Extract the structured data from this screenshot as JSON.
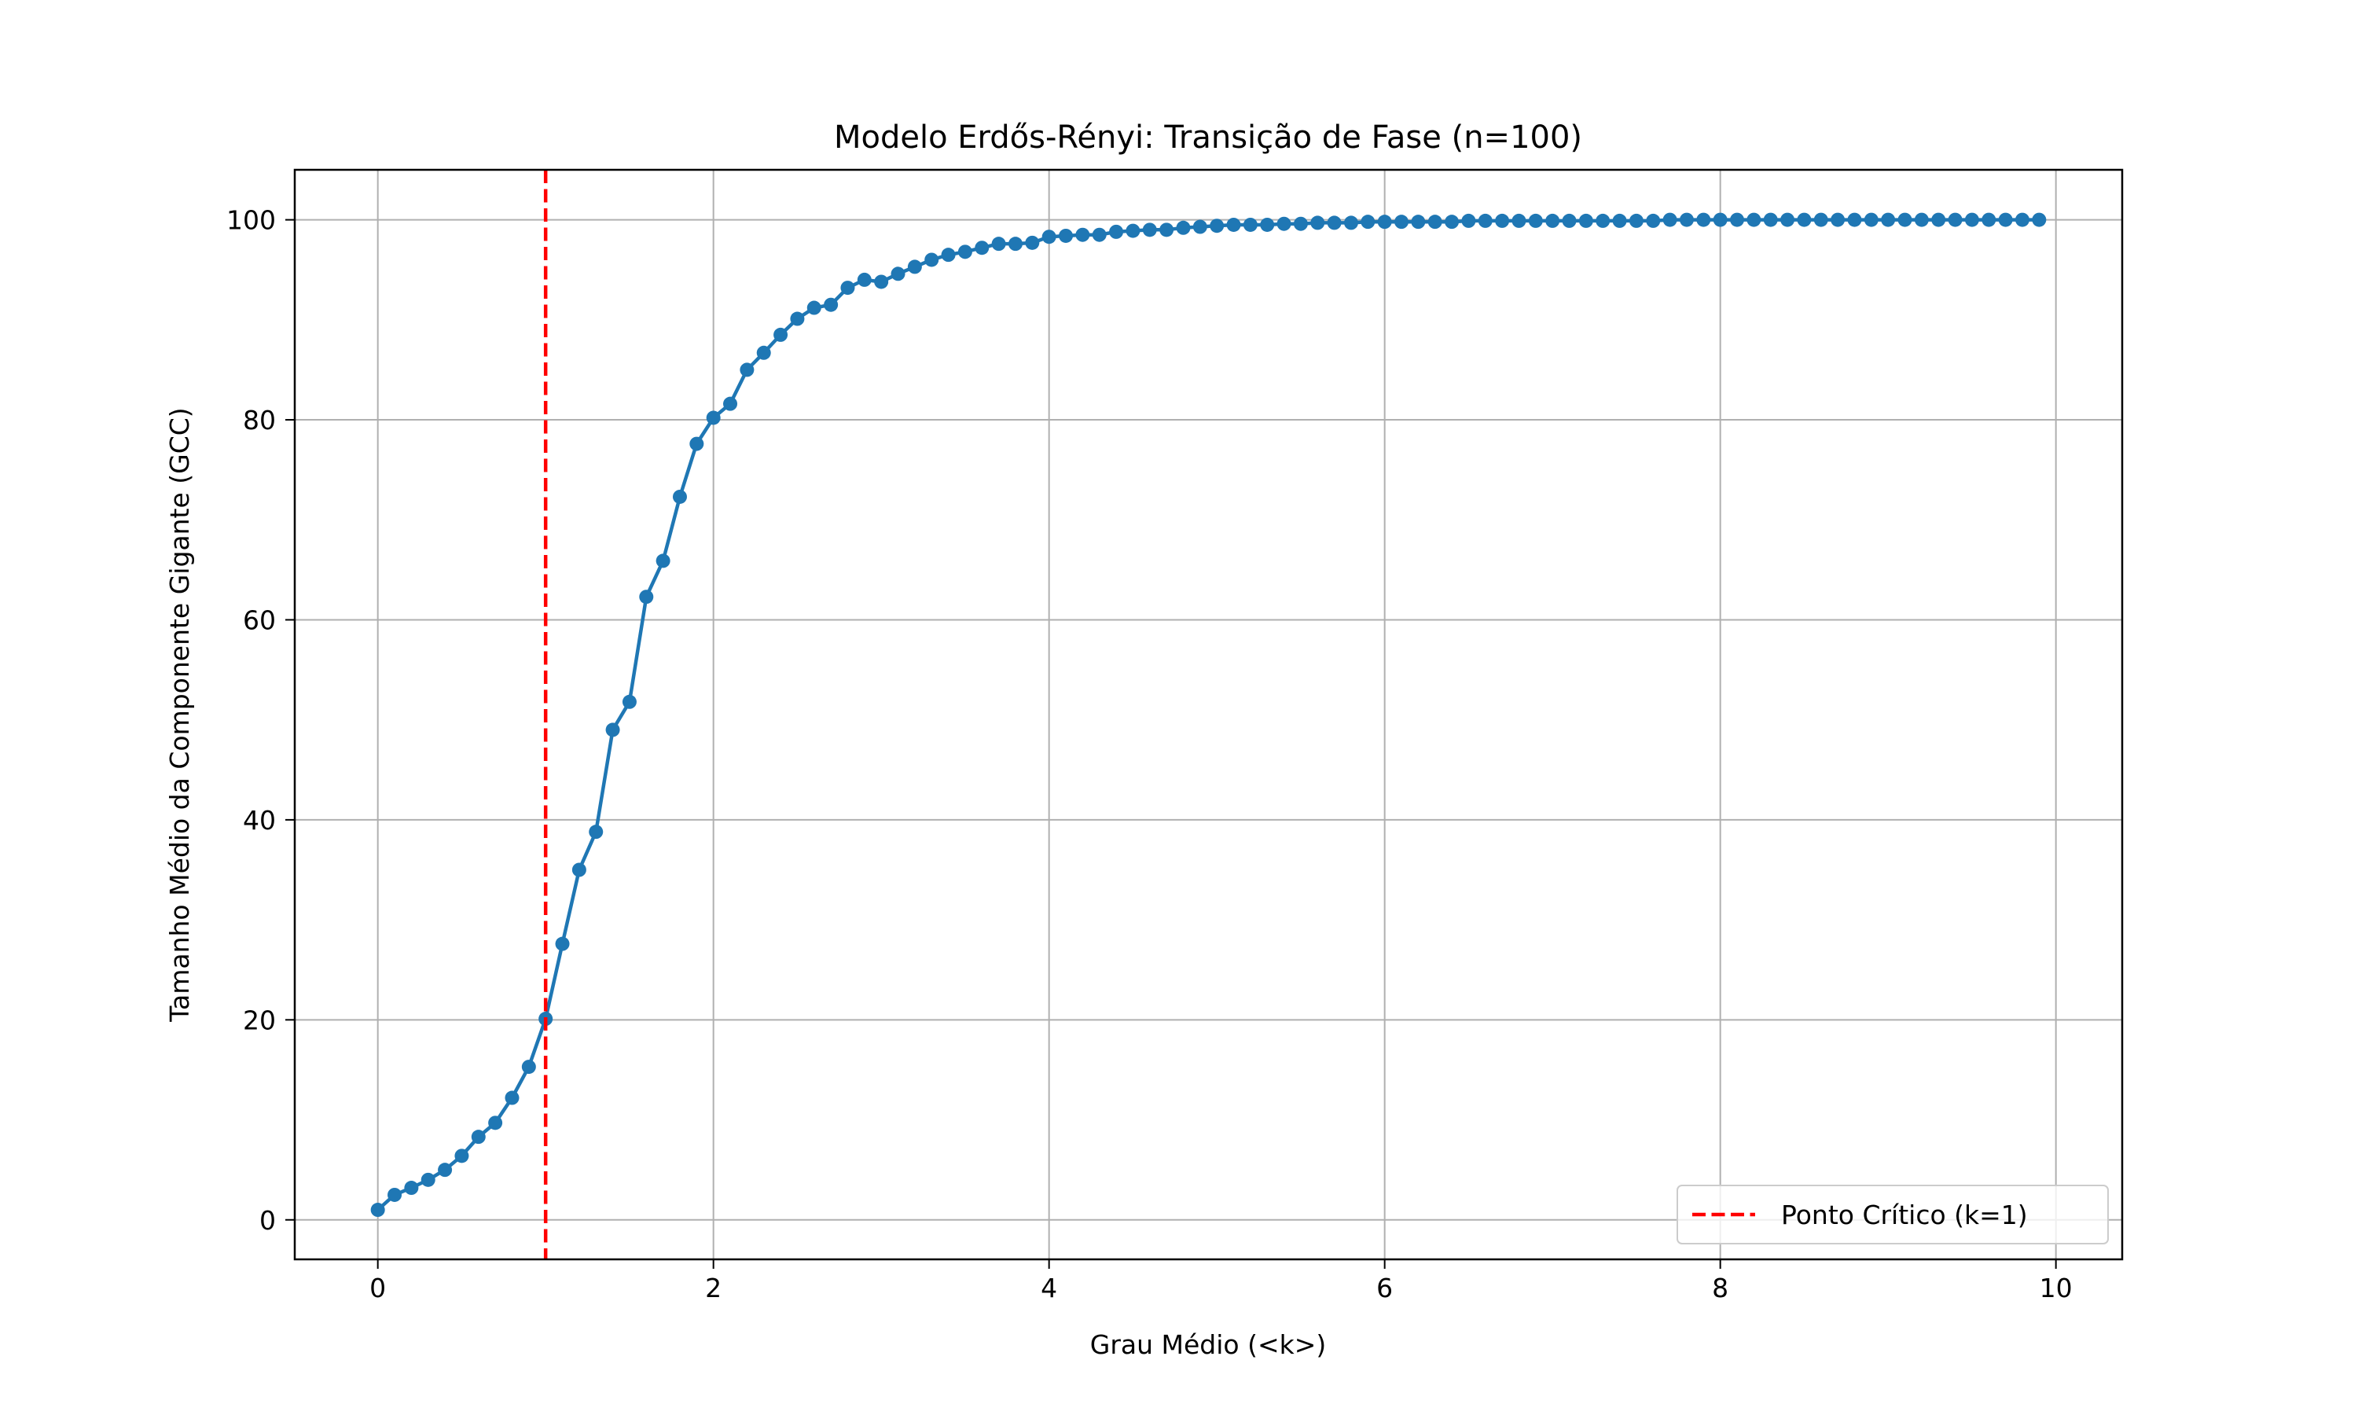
{
  "chart_data": {
    "type": "line",
    "title": "Modelo Erdős-Rényi: Transição de Fase (n=100)",
    "xlabel": "Grau Médio (<k>)",
    "ylabel": "Tamanho Médio da Componente Gigante (GCC)",
    "xlim": [
      -0.495,
      10.395
    ],
    "ylim": [
      -3.95,
      105.0
    ],
    "xticks": [
      0,
      2,
      4,
      6,
      8,
      10
    ],
    "yticks": [
      0,
      20,
      40,
      60,
      80,
      100
    ],
    "grid": true,
    "legend_position": "lower right",
    "colors": {
      "series": "#1f77b4",
      "critical": "#ff0000",
      "grid": "#b0b0b0"
    },
    "series": [
      {
        "x": [
          0.0,
          0.1,
          0.2,
          0.3,
          0.4,
          0.5,
          0.6,
          0.7,
          0.8,
          0.9,
          1.0,
          1.1,
          1.2,
          1.3,
          1.4,
          1.5,
          1.6,
          1.7,
          1.8,
          1.9,
          2.0,
          2.1,
          2.2,
          2.3,
          2.4,
          2.5,
          2.6,
          2.7,
          2.8,
          2.9,
          3.0,
          3.1,
          3.2,
          3.3,
          3.4,
          3.5,
          3.6,
          3.7,
          3.8,
          3.9,
          4.0,
          4.1,
          4.2,
          4.3,
          4.4,
          4.5,
          4.6,
          4.7,
          4.8,
          4.9,
          5.0,
          5.1,
          5.2,
          5.3,
          5.4,
          5.5,
          5.6,
          5.7,
          5.8,
          5.9,
          6.0,
          6.1,
          6.2,
          6.3,
          6.4,
          6.5,
          6.6,
          6.7,
          6.8,
          6.9,
          7.0,
          7.1,
          7.2,
          7.3,
          7.4,
          7.5,
          7.6,
          7.7,
          7.8,
          7.9,
          8.0,
          8.1,
          8.2,
          8.3,
          8.4,
          8.5,
          8.6,
          8.7,
          8.8,
          8.9,
          9.0,
          9.1,
          9.2,
          9.3,
          9.4,
          9.5,
          9.6,
          9.7,
          9.8,
          9.9
        ],
        "values": [
          1.0,
          2.5,
          3.2,
          4.0,
          5.0,
          6.4,
          8.3,
          9.7,
          12.2,
          15.3,
          20.1,
          27.6,
          35.0,
          38.8,
          49.0,
          51.8,
          62.3,
          65.9,
          72.3,
          77.6,
          80.2,
          81.6,
          85.0,
          86.7,
          88.5,
          90.1,
          91.2,
          91.5,
          93.2,
          94.0,
          93.8,
          94.6,
          95.3,
          96.0,
          96.5,
          96.8,
          97.2,
          97.6,
          97.6,
          97.7,
          98.3,
          98.4,
          98.5,
          98.5,
          98.8,
          98.9,
          99.0,
          99.0,
          99.2,
          99.3,
          99.4,
          99.5,
          99.5,
          99.5,
          99.6,
          99.6,
          99.7,
          99.7,
          99.7,
          99.8,
          99.8,
          99.8,
          99.8,
          99.8,
          99.8,
          99.9,
          99.9,
          99.9,
          99.9,
          99.9,
          99.9,
          99.9,
          99.9,
          99.9,
          99.9,
          99.9,
          99.9,
          100.0,
          100.0,
          100.0,
          100.0,
          100.0,
          100.0,
          100.0,
          100.0,
          100.0,
          100.0,
          100.0,
          100.0,
          100.0,
          100.0,
          100.0,
          100.0,
          100.0,
          100.0,
          100.0,
          100.0,
          100.0,
          100.0,
          100.0
        ]
      }
    ],
    "critical_line": {
      "x": 1,
      "label": "Ponto Crítico (k=1)"
    }
  }
}
